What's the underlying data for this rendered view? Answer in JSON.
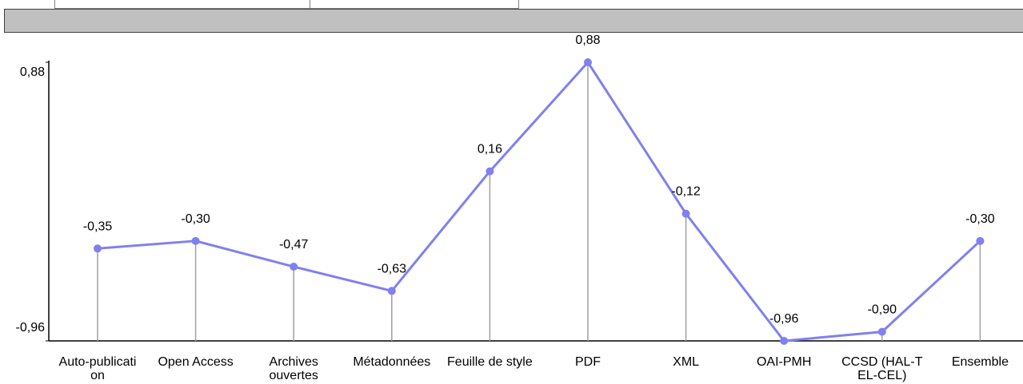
{
  "chart_data": {
    "type": "line",
    "categories": [
      [
        "Auto-publicati",
        "on"
      ],
      [
        "Open Access"
      ],
      [
        "Archives",
        "ouvertes"
      ],
      [
        "Métadonnées"
      ],
      [
        "Feuille de style"
      ],
      [
        "PDF"
      ],
      [
        "XML"
      ],
      [
        "OAI-PMH"
      ],
      [
        "CCSD (HAL-T",
        "EL-CEL)"
      ],
      [
        "Ensemble"
      ]
    ],
    "values": [
      -0.35,
      -0.3,
      -0.47,
      -0.63,
      0.16,
      0.88,
      -0.12,
      -0.96,
      -0.9,
      -0.3
    ],
    "value_labels": [
      "-0,35",
      "-0,30",
      "-0,47",
      "-0,63",
      "0,16",
      "0,88",
      "-0,12",
      "-0,96",
      "-0,90",
      "-0,30"
    ],
    "y_ticks": [
      {
        "value": 0.88,
        "label": "0,88"
      },
      {
        "value": -0.96,
        "label": "-0,96"
      }
    ],
    "ylim": [
      -0.96,
      0.88
    ],
    "line_color": "#8080ee",
    "drop_line_color": "#a0a0a0",
    "axis_color": "#000000"
  },
  "header": {
    "bar_color": "#c0c0c0"
  }
}
